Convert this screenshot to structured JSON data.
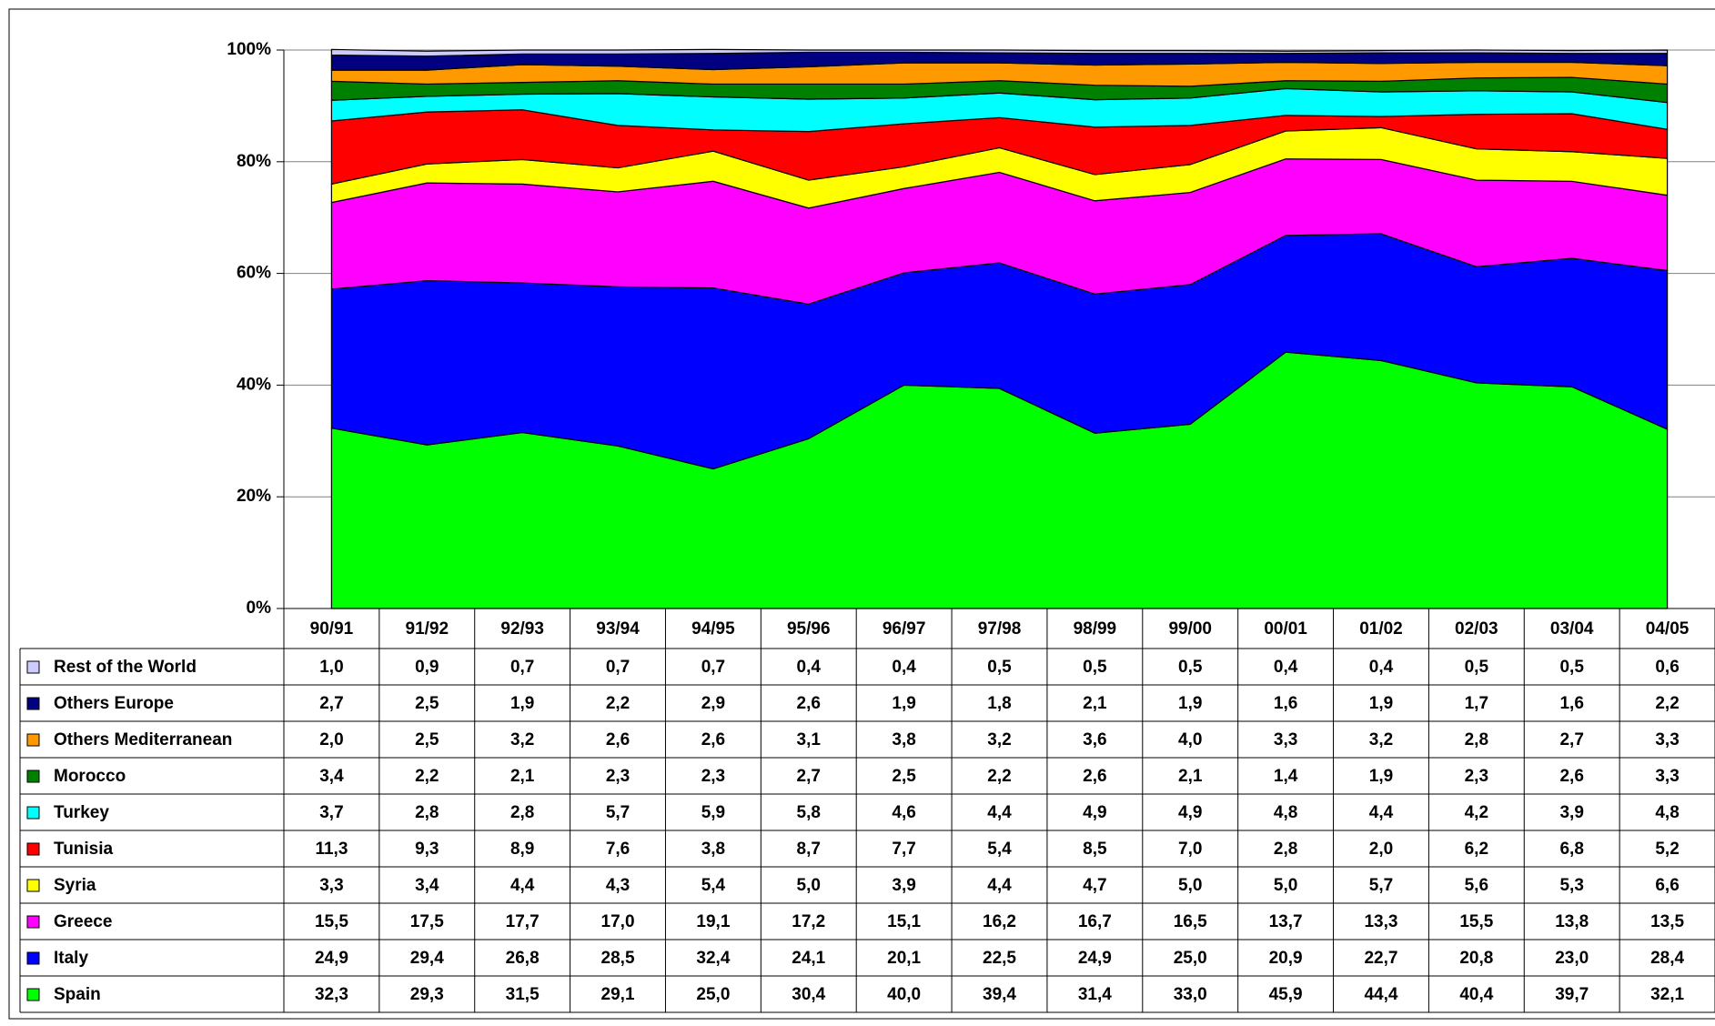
{
  "chart_data": {
    "type": "stacked_area",
    "categories": [
      "90/91",
      "91/92",
      "92/93",
      "93/94",
      "94/95",
      "95/96",
      "96/97",
      "97/98",
      "98/99",
      "99/00",
      "00/01",
      "01/02",
      "02/03",
      "03/04",
      "04/05"
    ],
    "ylim": [
      0,
      100
    ],
    "yticks": [
      {
        "value": 0,
        "label": "0%"
      },
      {
        "value": 20,
        "label": "20%"
      },
      {
        "value": 40,
        "label": "40%"
      },
      {
        "value": 60,
        "label": "60%"
      },
      {
        "value": 80,
        "label": "80%"
      },
      {
        "value": 100,
        "label": "100%"
      }
    ],
    "grid": true,
    "series": [
      {
        "name": "Spain",
        "color": "#00ff00",
        "values": [
          32.3,
          29.3,
          31.5,
          29.1,
          25.0,
          30.4,
          40.0,
          39.4,
          31.4,
          33.0,
          45.9,
          44.4,
          40.4,
          39.7,
          32.1
        ],
        "value_labels": [
          "32,3",
          "29,3",
          "31,5",
          "29,1",
          "25,0",
          "30,4",
          "40,0",
          "39,4",
          "31,4",
          "33,0",
          "45,9",
          "44,4",
          "40,4",
          "39,7",
          "32,1"
        ]
      },
      {
        "name": "Italy",
        "color": "#0000ff",
        "values": [
          24.9,
          29.4,
          26.8,
          28.5,
          32.4,
          24.1,
          20.1,
          22.5,
          24.9,
          25.0,
          20.9,
          22.7,
          20.8,
          23.0,
          28.4
        ],
        "value_labels": [
          "24,9",
          "29,4",
          "26,8",
          "28,5",
          "32,4",
          "24,1",
          "20,1",
          "22,5",
          "24,9",
          "25,0",
          "20,9",
          "22,7",
          "20,8",
          "23,0",
          "28,4"
        ]
      },
      {
        "name": "Greece",
        "color": "#ff00ff",
        "values": [
          15.5,
          17.5,
          17.7,
          17.0,
          19.1,
          17.2,
          15.1,
          16.2,
          16.7,
          16.5,
          13.7,
          13.3,
          15.5,
          13.8,
          13.5
        ],
        "value_labels": [
          "15,5",
          "17,5",
          "17,7",
          "17,0",
          "19,1",
          "17,2",
          "15,1",
          "16,2",
          "16,7",
          "16,5",
          "13,7",
          "13,3",
          "15,5",
          "13,8",
          "13,5"
        ]
      },
      {
        "name": "Syria",
        "color": "#ffff00",
        "values": [
          3.3,
          3.4,
          4.4,
          4.3,
          5.4,
          5.0,
          3.9,
          4.4,
          4.7,
          5.0,
          5.0,
          5.7,
          5.6,
          5.3,
          6.6
        ],
        "value_labels": [
          "3,3",
          "3,4",
          "4,4",
          "4,3",
          "5,4",
          "5,0",
          "3,9",
          "4,4",
          "4,7",
          "5,0",
          "5,0",
          "5,7",
          "5,6",
          "5,3",
          "6,6"
        ]
      },
      {
        "name": "Tunisia",
        "color": "#ff0000",
        "values": [
          11.3,
          9.3,
          8.9,
          7.6,
          3.8,
          8.7,
          7.7,
          5.4,
          8.5,
          7.0,
          2.8,
          2.0,
          6.2,
          6.8,
          5.2
        ],
        "value_labels": [
          "11,3",
          "9,3",
          "8,9",
          "7,6",
          "3,8",
          "8,7",
          "7,7",
          "5,4",
          "8,5",
          "7,0",
          "2,8",
          "2,0",
          "6,2",
          "6,8",
          "5,2"
        ]
      },
      {
        "name": "Turkey",
        "color": "#00ffff",
        "values": [
          3.7,
          2.8,
          2.8,
          5.7,
          5.9,
          5.8,
          4.6,
          4.4,
          4.9,
          4.9,
          4.8,
          4.4,
          4.2,
          3.9,
          4.8
        ],
        "value_labels": [
          "3,7",
          "2,8",
          "2,8",
          "5,7",
          "5,9",
          "5,8",
          "4,6",
          "4,4",
          "4,9",
          "4,9",
          "4,8",
          "4,4",
          "4,2",
          "3,9",
          "4,8"
        ]
      },
      {
        "name": "Morocco",
        "color": "#008000",
        "values": [
          3.4,
          2.2,
          2.1,
          2.3,
          2.3,
          2.7,
          2.5,
          2.2,
          2.6,
          2.1,
          1.4,
          1.9,
          2.3,
          2.6,
          3.3
        ],
        "value_labels": [
          "3,4",
          "2,2",
          "2,1",
          "2,3",
          "2,3",
          "2,7",
          "2,5",
          "2,2",
          "2,6",
          "2,1",
          "1,4",
          "1,9",
          "2,3",
          "2,6",
          "3,3"
        ]
      },
      {
        "name": "Others Mediterranean",
        "color": "#ff9900",
        "values": [
          2.0,
          2.5,
          3.2,
          2.6,
          2.6,
          3.1,
          3.8,
          3.2,
          3.6,
          4.0,
          3.3,
          3.2,
          2.8,
          2.7,
          3.3
        ],
        "value_labels": [
          "2,0",
          "2,5",
          "3,2",
          "2,6",
          "2,6",
          "3,1",
          "3,8",
          "3,2",
          "3,6",
          "4,0",
          "3,3",
          "3,2",
          "2,8",
          "2,7",
          "3,3"
        ]
      },
      {
        "name": "Others Europe",
        "color": "#000080",
        "values": [
          2.7,
          2.5,
          1.9,
          2.2,
          2.9,
          2.6,
          1.9,
          1.8,
          2.1,
          1.9,
          1.6,
          1.9,
          1.7,
          1.6,
          2.2
        ],
        "value_labels": [
          "2,7",
          "2,5",
          "1,9",
          "2,2",
          "2,9",
          "2,6",
          "1,9",
          "1,8",
          "2,1",
          "1,9",
          "1,6",
          "1,9",
          "1,7",
          "1,6",
          "2,2"
        ]
      },
      {
        "name": "Rest of the World",
        "color": "#ccccff",
        "values": [
          1.0,
          0.9,
          0.7,
          0.7,
          0.7,
          0.4,
          0.4,
          0.5,
          0.5,
          0.5,
          0.4,
          0.4,
          0.5,
          0.5,
          0.6
        ],
        "value_labels": [
          "1,0",
          "0,9",
          "0,7",
          "0,7",
          "0,7",
          "0,4",
          "0,4",
          "0,5",
          "0,5",
          "0,5",
          "0,4",
          "0,4",
          "0,5",
          "0,5",
          "0,6"
        ]
      }
    ]
  }
}
